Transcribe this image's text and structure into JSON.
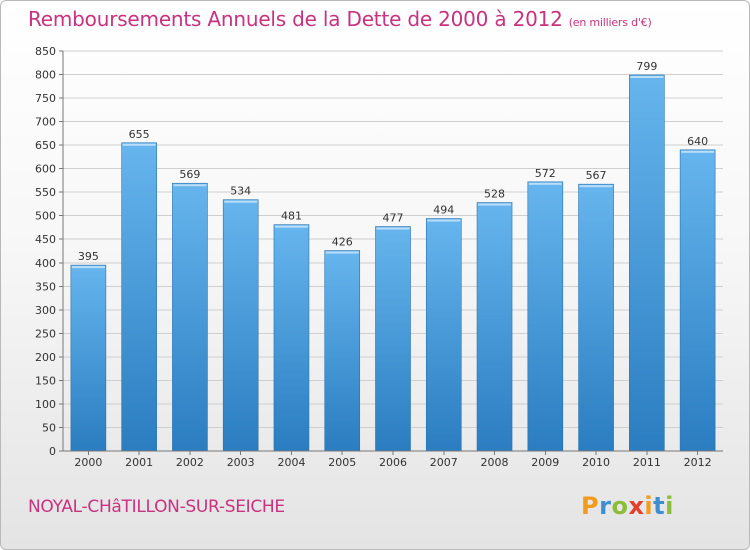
{
  "header": {
    "title": "Remboursements Annuels de la Dette de 2000 à 2012",
    "subtitle": "(en milliers d'€)"
  },
  "footer": {
    "city": "NOYAL-CHâTILLON-SUR-SEICHE",
    "logo_letters": [
      "P",
      "r",
      "o",
      "x",
      "i",
      "t",
      "i"
    ]
  },
  "colors": {
    "title": "#c8327f",
    "bar_top": "#66b5ee",
    "bar_bottom": "#2a7dc0",
    "grid": "#cfcfcf"
  },
  "chart_data": {
    "type": "bar",
    "title": "Remboursements Annuels de la Dette de 2000 à 2012",
    "xlabel": "",
    "ylabel": "",
    "categories": [
      "2000",
      "2001",
      "2002",
      "2003",
      "2004",
      "2005",
      "2006",
      "2007",
      "2008",
      "2009",
      "2010",
      "2011",
      "2012"
    ],
    "values": [
      395,
      655,
      569,
      534,
      481,
      426,
      477,
      494,
      528,
      572,
      567,
      799,
      640
    ],
    "ylim": [
      0,
      850
    ],
    "yticks": [
      0,
      50,
      100,
      150,
      200,
      250,
      300,
      350,
      400,
      450,
      500,
      550,
      600,
      650,
      700,
      750,
      800,
      850
    ],
    "grid": true
  }
}
